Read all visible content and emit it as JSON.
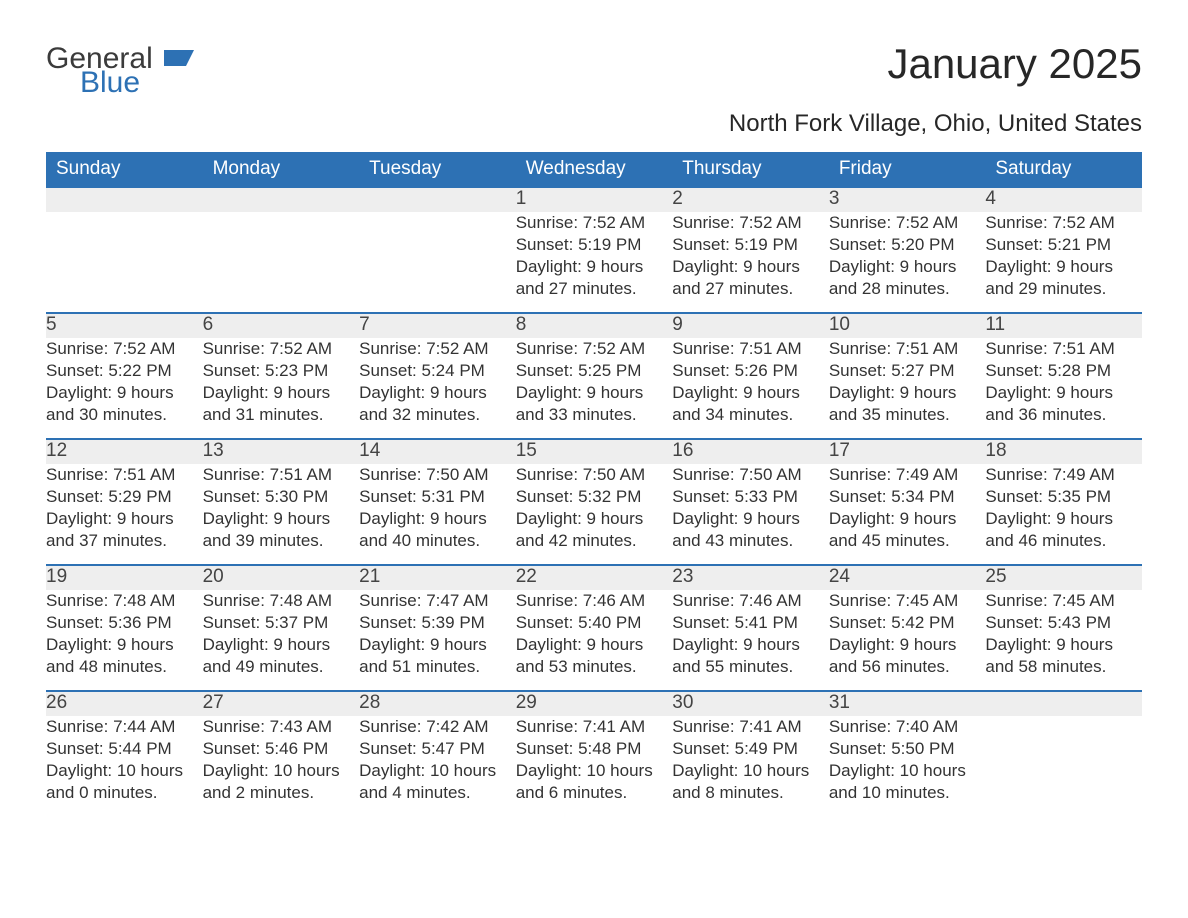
{
  "brand": {
    "general": "General",
    "blue": "Blue",
    "flag_color": "#2d71b4"
  },
  "title": "January 2025",
  "subtitle": "North Fork Village, Ohio, United States",
  "colors": {
    "header_bg": "#2d71b4",
    "header_text": "#ffffff",
    "daynum_bg": "#eeeeee",
    "row_border": "#2d71b4",
    "body_text": "#333333",
    "page_bg": "#ffffff"
  },
  "typography": {
    "title_fontsize": 42,
    "subtitle_fontsize": 24,
    "dayheader_fontsize": 19,
    "daynum_fontsize": 19,
    "cell_fontsize": 17,
    "logo_fontsize": 30
  },
  "day_headers": [
    "Sunday",
    "Monday",
    "Tuesday",
    "Wednesday",
    "Thursday",
    "Friday",
    "Saturday"
  ],
  "weeks": [
    [
      null,
      null,
      null,
      {
        "n": "1",
        "sunrise": "7:52 AM",
        "sunset": "5:19 PM",
        "daylight": "9 hours and 27 minutes."
      },
      {
        "n": "2",
        "sunrise": "7:52 AM",
        "sunset": "5:19 PM",
        "daylight": "9 hours and 27 minutes."
      },
      {
        "n": "3",
        "sunrise": "7:52 AM",
        "sunset": "5:20 PM",
        "daylight": "9 hours and 28 minutes."
      },
      {
        "n": "4",
        "sunrise": "7:52 AM",
        "sunset": "5:21 PM",
        "daylight": "9 hours and 29 minutes."
      }
    ],
    [
      {
        "n": "5",
        "sunrise": "7:52 AM",
        "sunset": "5:22 PM",
        "daylight": "9 hours and 30 minutes."
      },
      {
        "n": "6",
        "sunrise": "7:52 AM",
        "sunset": "5:23 PM",
        "daylight": "9 hours and 31 minutes."
      },
      {
        "n": "7",
        "sunrise": "7:52 AM",
        "sunset": "5:24 PM",
        "daylight": "9 hours and 32 minutes."
      },
      {
        "n": "8",
        "sunrise": "7:52 AM",
        "sunset": "5:25 PM",
        "daylight": "9 hours and 33 minutes."
      },
      {
        "n": "9",
        "sunrise": "7:51 AM",
        "sunset": "5:26 PM",
        "daylight": "9 hours and 34 minutes."
      },
      {
        "n": "10",
        "sunrise": "7:51 AM",
        "sunset": "5:27 PM",
        "daylight": "9 hours and 35 minutes."
      },
      {
        "n": "11",
        "sunrise": "7:51 AM",
        "sunset": "5:28 PM",
        "daylight": "9 hours and 36 minutes."
      }
    ],
    [
      {
        "n": "12",
        "sunrise": "7:51 AM",
        "sunset": "5:29 PM",
        "daylight": "9 hours and 37 minutes."
      },
      {
        "n": "13",
        "sunrise": "7:51 AM",
        "sunset": "5:30 PM",
        "daylight": "9 hours and 39 minutes."
      },
      {
        "n": "14",
        "sunrise": "7:50 AM",
        "sunset": "5:31 PM",
        "daylight": "9 hours and 40 minutes."
      },
      {
        "n": "15",
        "sunrise": "7:50 AM",
        "sunset": "5:32 PM",
        "daylight": "9 hours and 42 minutes."
      },
      {
        "n": "16",
        "sunrise": "7:50 AM",
        "sunset": "5:33 PM",
        "daylight": "9 hours and 43 minutes."
      },
      {
        "n": "17",
        "sunrise": "7:49 AM",
        "sunset": "5:34 PM",
        "daylight": "9 hours and 45 minutes."
      },
      {
        "n": "18",
        "sunrise": "7:49 AM",
        "sunset": "5:35 PM",
        "daylight": "9 hours and 46 minutes."
      }
    ],
    [
      {
        "n": "19",
        "sunrise": "7:48 AM",
        "sunset": "5:36 PM",
        "daylight": "9 hours and 48 minutes."
      },
      {
        "n": "20",
        "sunrise": "7:48 AM",
        "sunset": "5:37 PM",
        "daylight": "9 hours and 49 minutes."
      },
      {
        "n": "21",
        "sunrise": "7:47 AM",
        "sunset": "5:39 PM",
        "daylight": "9 hours and 51 minutes."
      },
      {
        "n": "22",
        "sunrise": "7:46 AM",
        "sunset": "5:40 PM",
        "daylight": "9 hours and 53 minutes."
      },
      {
        "n": "23",
        "sunrise": "7:46 AM",
        "sunset": "5:41 PM",
        "daylight": "9 hours and 55 minutes."
      },
      {
        "n": "24",
        "sunrise": "7:45 AM",
        "sunset": "5:42 PM",
        "daylight": "9 hours and 56 minutes."
      },
      {
        "n": "25",
        "sunrise": "7:45 AM",
        "sunset": "5:43 PM",
        "daylight": "9 hours and 58 minutes."
      }
    ],
    [
      {
        "n": "26",
        "sunrise": "7:44 AM",
        "sunset": "5:44 PM",
        "daylight": "10 hours and 0 minutes."
      },
      {
        "n": "27",
        "sunrise": "7:43 AM",
        "sunset": "5:46 PM",
        "daylight": "10 hours and 2 minutes."
      },
      {
        "n": "28",
        "sunrise": "7:42 AM",
        "sunset": "5:47 PM",
        "daylight": "10 hours and 4 minutes."
      },
      {
        "n": "29",
        "sunrise": "7:41 AM",
        "sunset": "5:48 PM",
        "daylight": "10 hours and 6 minutes."
      },
      {
        "n": "30",
        "sunrise": "7:41 AM",
        "sunset": "5:49 PM",
        "daylight": "10 hours and 8 minutes."
      },
      {
        "n": "31",
        "sunrise": "7:40 AM",
        "sunset": "5:50 PM",
        "daylight": "10 hours and 10 minutes."
      },
      null
    ]
  ],
  "labels": {
    "sunrise": "Sunrise:",
    "sunset": "Sunset:",
    "daylight": "Daylight:"
  }
}
